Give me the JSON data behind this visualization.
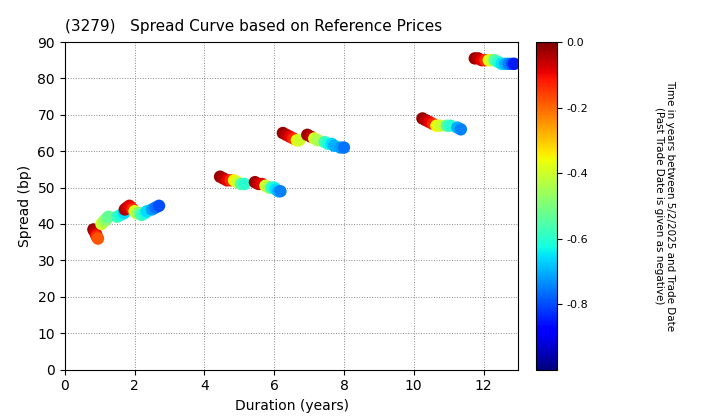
{
  "title": "(3279)   Spread Curve based on Reference Prices",
  "xlabel": "Duration (years)",
  "ylabel": "Spread (bp)",
  "colorbar_label": "Time in years between 5/2/2025 and Trade Date\n(Past Trade Date is given as negative)",
  "xlim": [
    0,
    13
  ],
  "ylim": [
    0,
    90
  ],
  "xticks": [
    0,
    2,
    4,
    6,
    8,
    10,
    12
  ],
  "yticks": [
    0,
    10,
    20,
    30,
    40,
    50,
    60,
    70,
    80,
    90
  ],
  "cmap": "jet",
  "clim": [
    -1.0,
    0.0
  ],
  "cticks": [
    0.0,
    -0.2,
    -0.4,
    -0.6,
    -0.8
  ],
  "clusters": [
    {
      "points": [
        [
          0.82,
          38.5,
          -0.02
        ],
        [
          0.85,
          38,
          -0.04
        ],
        [
          0.88,
          37.5,
          -0.06
        ],
        [
          0.9,
          37,
          -0.1
        ],
        [
          0.92,
          36.5,
          -0.14
        ],
        [
          0.95,
          36,
          -0.18
        ],
        [
          1.05,
          40,
          -0.4
        ],
        [
          1.1,
          40.5,
          -0.43
        ],
        [
          1.15,
          41,
          -0.46
        ],
        [
          1.2,
          41.5,
          -0.5
        ],
        [
          1.25,
          42,
          -0.53
        ],
        [
          1.5,
          42,
          -0.58
        ],
        [
          1.6,
          42.5,
          -0.62
        ],
        [
          1.7,
          43,
          -0.66
        ],
        [
          1.72,
          44,
          -0.04
        ],
        [
          1.78,
          44.5,
          -0.06
        ],
        [
          1.85,
          45,
          -0.08
        ],
        [
          1.9,
          44.5,
          -0.1
        ],
        [
          1.95,
          44,
          -0.14
        ],
        [
          2.0,
          43.5,
          -0.38
        ],
        [
          2.05,
          43,
          -0.42
        ],
        [
          2.1,
          43,
          -0.46
        ],
        [
          2.15,
          43,
          -0.5
        ],
        [
          2.2,
          42.5,
          -0.58
        ],
        [
          2.3,
          43,
          -0.62
        ],
        [
          2.35,
          43.5,
          -0.66
        ],
        [
          2.5,
          44,
          -0.72
        ],
        [
          2.6,
          44.5,
          -0.76
        ],
        [
          2.7,
          45,
          -0.8
        ]
      ]
    },
    {
      "points": [
        [
          4.45,
          53,
          -0.02
        ],
        [
          4.55,
          52.5,
          -0.05
        ],
        [
          4.65,
          52,
          -0.09
        ],
        [
          4.75,
          52,
          -0.13
        ],
        [
          4.85,
          52,
          -0.35
        ],
        [
          4.95,
          51.5,
          -0.4
        ],
        [
          5.05,
          51,
          -0.55
        ],
        [
          5.15,
          51,
          -0.6
        ],
        [
          5.45,
          51.5,
          -0.03
        ],
        [
          5.55,
          51,
          -0.06
        ],
        [
          5.65,
          51,
          -0.09
        ],
        [
          5.75,
          50.5,
          -0.4
        ],
        [
          5.85,
          50,
          -0.44
        ],
        [
          5.92,
          50,
          -0.58
        ],
        [
          6.0,
          50,
          -0.62
        ],
        [
          6.05,
          49.5,
          -0.66
        ],
        [
          6.12,
          49,
          -0.7
        ],
        [
          6.18,
          49,
          -0.75
        ]
      ]
    },
    {
      "points": [
        [
          6.25,
          65,
          -0.02
        ],
        [
          6.35,
          64.5,
          -0.05
        ],
        [
          6.45,
          64,
          -0.09
        ],
        [
          6.55,
          63.5,
          -0.13
        ],
        [
          6.65,
          63,
          -0.35
        ],
        [
          6.72,
          63,
          -0.4
        ],
        [
          6.95,
          64.5,
          -0.03
        ],
        [
          7.05,
          64,
          -0.06
        ],
        [
          7.15,
          63.5,
          -0.4
        ],
        [
          7.25,
          63,
          -0.44
        ],
        [
          7.45,
          62.5,
          -0.58
        ],
        [
          7.55,
          62,
          -0.62
        ],
        [
          7.65,
          62,
          -0.66
        ],
        [
          7.72,
          61.5,
          -0.7
        ],
        [
          7.9,
          61,
          -0.72
        ],
        [
          8.0,
          61,
          -0.76
        ]
      ]
    },
    {
      "points": [
        [
          10.25,
          69,
          -0.02
        ],
        [
          10.35,
          68.5,
          -0.05
        ],
        [
          10.45,
          68,
          -0.09
        ],
        [
          10.55,
          67.5,
          -0.13
        ],
        [
          10.65,
          67,
          -0.35
        ],
        [
          10.75,
          67,
          -0.4
        ],
        [
          10.95,
          67,
          -0.55
        ],
        [
          11.05,
          67,
          -0.6
        ],
        [
          11.25,
          66.5,
          -0.7
        ],
        [
          11.35,
          66,
          -0.75
        ]
      ]
    },
    {
      "points": [
        [
          11.75,
          85.5,
          -0.02
        ],
        [
          11.85,
          85.5,
          -0.05
        ],
        [
          11.95,
          85,
          -0.09
        ],
        [
          12.05,
          85,
          -0.13
        ],
        [
          12.15,
          85,
          -0.35
        ],
        [
          12.22,
          85,
          -0.4
        ],
        [
          12.32,
          85,
          -0.55
        ],
        [
          12.42,
          84.5,
          -0.6
        ],
        [
          12.52,
          84,
          -0.65
        ],
        [
          12.62,
          84,
          -0.7
        ],
        [
          12.72,
          84,
          -0.75
        ],
        [
          12.82,
          84,
          -0.8
        ],
        [
          12.88,
          84,
          -0.85
        ]
      ]
    }
  ]
}
